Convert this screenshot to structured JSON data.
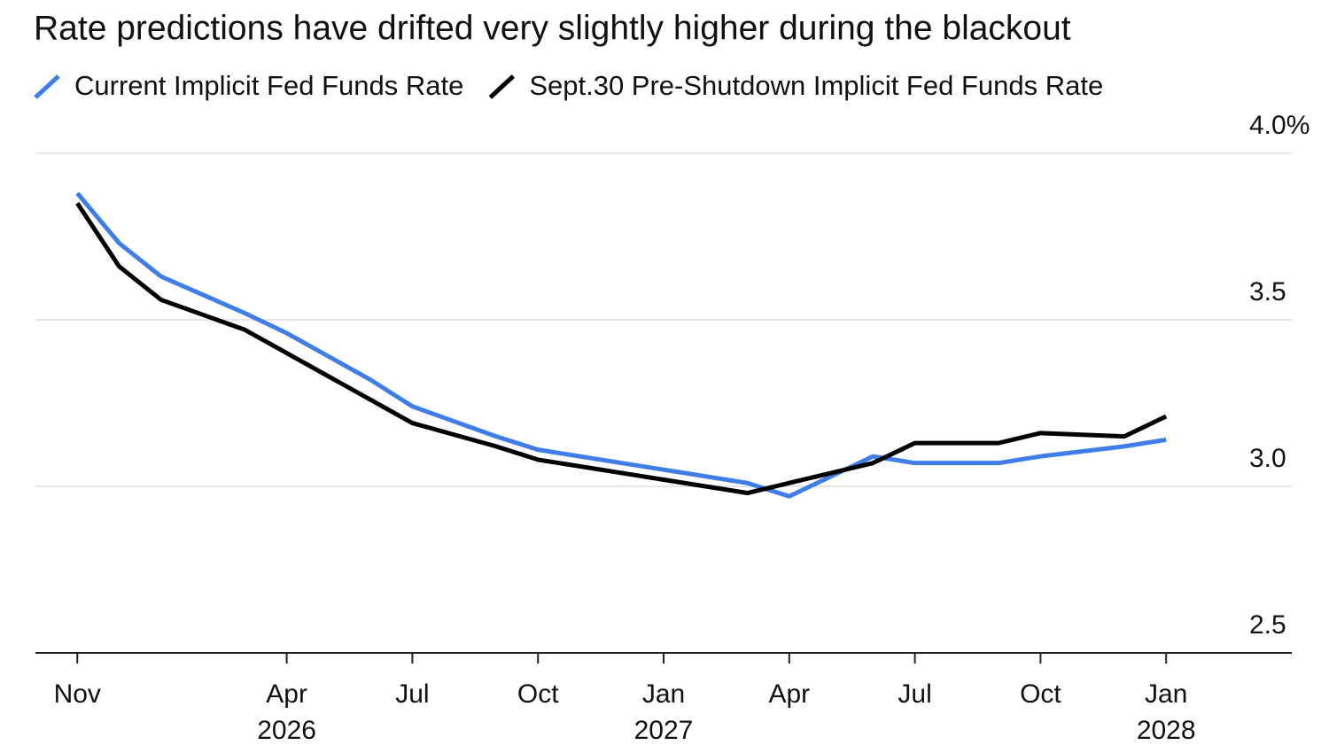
{
  "chart_data": {
    "type": "line",
    "title": "Rate predictions have drifted very slightly higher during the blackout",
    "x": [
      "2025-11",
      "2025-12",
      "2026-01",
      "2026-03",
      "2026-04",
      "2026-06",
      "2026-07",
      "2026-09",
      "2026-10",
      "2026-12",
      "2027-01",
      "2027-03",
      "2027-04",
      "2027-06",
      "2027-07",
      "2027-09",
      "2027-10",
      "2027-12",
      "2028-01"
    ],
    "series": [
      {
        "name": "Current Implicit Fed Funds Rate",
        "color": "#3f7ee8",
        "values": [
          3.88,
          3.73,
          3.63,
          3.52,
          3.46,
          3.32,
          3.24,
          3.15,
          3.11,
          3.07,
          3.05,
          3.01,
          2.97,
          3.09,
          3.07,
          3.07,
          3.09,
          3.12,
          3.14
        ]
      },
      {
        "name": "Sept.30 Pre-Shutdown Implicit Fed Funds Rate",
        "color": "#000000",
        "values": [
          3.85,
          3.66,
          3.56,
          3.47,
          3.4,
          3.26,
          3.19,
          3.12,
          3.08,
          3.04,
          3.02,
          2.98,
          3.01,
          3.07,
          3.13,
          3.13,
          3.16,
          3.15,
          3.21
        ]
      }
    ],
    "xlim": [
      "2025-10",
      "2028-04"
    ],
    "xticks": [
      {
        "value": "2025-11",
        "label": "Nov"
      },
      {
        "value": "2026-04",
        "label": "Apr",
        "year": "2026"
      },
      {
        "value": "2026-07",
        "label": "Jul"
      },
      {
        "value": "2026-10",
        "label": "Oct"
      },
      {
        "value": "2027-01",
        "label": "Jan",
        "year": "2027"
      },
      {
        "value": "2027-04",
        "label": "Apr"
      },
      {
        "value": "2027-07",
        "label": "Jul"
      },
      {
        "value": "2027-10",
        "label": "Oct"
      },
      {
        "value": "2028-01",
        "label": "Jan",
        "year": "2028"
      }
    ],
    "ylim": [
      2.5,
      4.0
    ],
    "yticks": [
      {
        "value": 4.0,
        "label": "4.0%"
      },
      3.5,
      {
        "value": 3.0,
        "label": "3.0"
      },
      2.5
    ],
    "grid": true
  }
}
